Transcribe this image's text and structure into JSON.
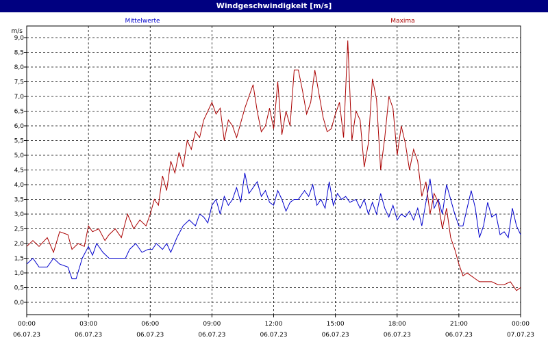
{
  "window_title": "Windgeschwindigkeit [m/s]",
  "chart_data": {
    "type": "line",
    "title": "Windgeschwindigkeit [m/s]",
    "ylabel": "m/s",
    "ylim": [
      0,
      9
    ],
    "xlim": [
      0,
      24
    ],
    "grid": true,
    "y_ticks": [
      "0,0",
      "0,5",
      "1,0",
      "1,5",
      "2,0",
      "2,5",
      "3,0",
      "3,5",
      "4,0",
      "4,5",
      "5,0",
      "5,5",
      "6,0",
      "6,5",
      "7,0",
      "7,5",
      "8,0",
      "8,5",
      "9,0"
    ],
    "x_ticks": [
      {
        "time": "00:00",
        "date": "06.07.23"
      },
      {
        "time": "03:00",
        "date": "06.07.23"
      },
      {
        "time": "06:00",
        "date": "06.07.23"
      },
      {
        "time": "09:00",
        "date": "06.07.23"
      },
      {
        "time": "12:00",
        "date": "06.07.23"
      },
      {
        "time": "15:00",
        "date": "06.07.23"
      },
      {
        "time": "18:00",
        "date": "06.07.23"
      },
      {
        "time": "21:00",
        "date": "06.07.23"
      },
      {
        "time": "00:00",
        "date": "07.07.23"
      }
    ],
    "series": [
      {
        "name": "Mittelwerte",
        "color": "#0000cc",
        "points": [
          [
            0,
            1.3
          ],
          [
            0.3,
            1.5
          ],
          [
            0.6,
            1.2
          ],
          [
            1,
            1.2
          ],
          [
            1.3,
            1.5
          ],
          [
            1.6,
            1.3
          ],
          [
            2,
            1.2
          ],
          [
            2.2,
            0.8
          ],
          [
            2.4,
            0.8
          ],
          [
            2.7,
            1.5
          ],
          [
            3,
            1.9
          ],
          [
            3.2,
            1.6
          ],
          [
            3.4,
            2.0
          ],
          [
            3.7,
            1.7
          ],
          [
            4,
            1.5
          ],
          [
            4.5,
            1.5
          ],
          [
            4.8,
            1.5
          ],
          [
            5,
            1.8
          ],
          [
            5.3,
            2.0
          ],
          [
            5.6,
            1.7
          ],
          [
            5.9,
            1.8
          ],
          [
            6.1,
            1.8
          ],
          [
            6.3,
            2.0
          ],
          [
            6.6,
            1.8
          ],
          [
            6.8,
            2.0
          ],
          [
            7.0,
            1.7
          ],
          [
            7.3,
            2.2
          ],
          [
            7.6,
            2.6
          ],
          [
            7.9,
            2.8
          ],
          [
            8.2,
            2.6
          ],
          [
            8.4,
            3.0
          ],
          [
            8.6,
            2.9
          ],
          [
            8.8,
            2.7
          ],
          [
            9.0,
            3.3
          ],
          [
            9.2,
            3.5
          ],
          [
            9.4,
            3.0
          ],
          [
            9.6,
            3.6
          ],
          [
            9.8,
            3.3
          ],
          [
            10.0,
            3.5
          ],
          [
            10.2,
            3.9
          ],
          [
            10.4,
            3.4
          ],
          [
            10.6,
            4.4
          ],
          [
            10.8,
            3.7
          ],
          [
            11.0,
            3.9
          ],
          [
            11.2,
            4.1
          ],
          [
            11.4,
            3.6
          ],
          [
            11.6,
            3.8
          ],
          [
            11.8,
            3.4
          ],
          [
            12.0,
            3.3
          ],
          [
            12.2,
            3.8
          ],
          [
            12.4,
            3.5
          ],
          [
            12.6,
            3.1
          ],
          [
            12.8,
            3.4
          ],
          [
            13.0,
            3.5
          ],
          [
            13.2,
            3.5
          ],
          [
            13.5,
            3.8
          ],
          [
            13.7,
            3.6
          ],
          [
            13.9,
            4.0
          ],
          [
            14.1,
            3.3
          ],
          [
            14.3,
            3.5
          ],
          [
            14.5,
            3.2
          ],
          [
            14.7,
            4.1
          ],
          [
            14.9,
            3.3
          ],
          [
            15.1,
            3.7
          ],
          [
            15.3,
            3.5
          ],
          [
            15.5,
            3.6
          ],
          [
            15.7,
            3.4
          ],
          [
            16.0,
            3.5
          ],
          [
            16.2,
            3.2
          ],
          [
            16.4,
            3.5
          ],
          [
            16.6,
            3.0
          ],
          [
            16.8,
            3.4
          ],
          [
            17.0,
            3.0
          ],
          [
            17.2,
            3.7
          ],
          [
            17.4,
            3.2
          ],
          [
            17.6,
            2.9
          ],
          [
            17.8,
            3.3
          ],
          [
            18.0,
            2.8
          ],
          [
            18.2,
            3.0
          ],
          [
            18.4,
            2.9
          ],
          [
            18.6,
            3.1
          ],
          [
            18.8,
            2.8
          ],
          [
            19.0,
            3.2
          ],
          [
            19.2,
            2.6
          ],
          [
            19.4,
            3.4
          ],
          [
            19.6,
            4.2
          ],
          [
            19.8,
            3.2
          ],
          [
            20.0,
            3.5
          ],
          [
            20.2,
            3.0
          ],
          [
            20.4,
            4.0
          ],
          [
            20.6,
            3.5
          ],
          [
            20.8,
            3.0
          ],
          [
            21.0,
            2.6
          ],
          [
            21.2,
            2.6
          ],
          [
            21.4,
            3.2
          ],
          [
            21.6,
            3.8
          ],
          [
            21.8,
            3.2
          ],
          [
            22.0,
            2.2
          ],
          [
            22.2,
            2.6
          ],
          [
            22.4,
            3.4
          ],
          [
            22.6,
            2.9
          ],
          [
            22.8,
            3.0
          ],
          [
            23.0,
            2.3
          ],
          [
            23.2,
            2.4
          ],
          [
            23.4,
            2.2
          ],
          [
            23.6,
            3.2
          ],
          [
            23.8,
            2.6
          ],
          [
            24.0,
            2.3
          ]
        ]
      },
      {
        "name": "Maxima",
        "color": "#aa0000",
        "points": [
          [
            0,
            1.9
          ],
          [
            0.3,
            2.1
          ],
          [
            0.6,
            1.9
          ],
          [
            1,
            2.2
          ],
          [
            1.3,
            1.7
          ],
          [
            1.6,
            2.4
          ],
          [
            2,
            2.3
          ],
          [
            2.2,
            1.8
          ],
          [
            2.5,
            2.0
          ],
          [
            2.8,
            1.9
          ],
          [
            3,
            2.6
          ],
          [
            3.2,
            2.4
          ],
          [
            3.5,
            2.5
          ],
          [
            3.8,
            2.1
          ],
          [
            4,
            2.3
          ],
          [
            4.3,
            2.5
          ],
          [
            4.6,
            2.2
          ],
          [
            4.9,
            3.0
          ],
          [
            5.2,
            2.5
          ],
          [
            5.5,
            2.8
          ],
          [
            5.8,
            2.6
          ],
          [
            6.0,
            3.0
          ],
          [
            6.2,
            3.5
          ],
          [
            6.4,
            3.3
          ],
          [
            6.6,
            4.3
          ],
          [
            6.8,
            3.8
          ],
          [
            7.0,
            4.8
          ],
          [
            7.2,
            4.4
          ],
          [
            7.4,
            5.1
          ],
          [
            7.6,
            4.6
          ],
          [
            7.8,
            5.5
          ],
          [
            8.0,
            5.2
          ],
          [
            8.2,
            5.8
          ],
          [
            8.4,
            5.6
          ],
          [
            8.6,
            6.2
          ],
          [
            8.8,
            6.5
          ],
          [
            9.0,
            6.8
          ],
          [
            9.2,
            6.4
          ],
          [
            9.4,
            6.6
          ],
          [
            9.6,
            5.5
          ],
          [
            9.8,
            6.2
          ],
          [
            10.0,
            6.0
          ],
          [
            10.2,
            5.6
          ],
          [
            10.4,
            6.1
          ],
          [
            10.6,
            6.6
          ],
          [
            10.8,
            7.0
          ],
          [
            11.0,
            7.4
          ],
          [
            11.2,
            6.5
          ],
          [
            11.4,
            5.8
          ],
          [
            11.6,
            6.0
          ],
          [
            11.8,
            6.6
          ],
          [
            12.0,
            5.9
          ],
          [
            12.2,
            7.5
          ],
          [
            12.4,
            5.7
          ],
          [
            12.6,
            6.5
          ],
          [
            12.8,
            6.0
          ],
          [
            13.0,
            7.9
          ],
          [
            13.2,
            7.9
          ],
          [
            13.4,
            7.2
          ],
          [
            13.6,
            6.4
          ],
          [
            13.8,
            6.8
          ],
          [
            14.0,
            7.9
          ],
          [
            14.2,
            7.1
          ],
          [
            14.4,
            6.3
          ],
          [
            14.6,
            5.8
          ],
          [
            14.8,
            5.9
          ],
          [
            15.0,
            6.4
          ],
          [
            15.2,
            6.8
          ],
          [
            15.4,
            5.6
          ],
          [
            15.6,
            8.9
          ],
          [
            15.8,
            5.5
          ],
          [
            16.0,
            6.5
          ],
          [
            16.2,
            6.2
          ],
          [
            16.4,
            4.6
          ],
          [
            16.6,
            5.4
          ],
          [
            16.8,
            7.6
          ],
          [
            17.0,
            6.9
          ],
          [
            17.2,
            4.5
          ],
          [
            17.4,
            5.6
          ],
          [
            17.6,
            7.0
          ],
          [
            17.8,
            6.6
          ],
          [
            18.0,
            5.0
          ],
          [
            18.2,
            6.0
          ],
          [
            18.4,
            5.4
          ],
          [
            18.6,
            4.5
          ],
          [
            18.8,
            5.2
          ],
          [
            19.0,
            4.8
          ],
          [
            19.2,
            3.6
          ],
          [
            19.4,
            4.1
          ],
          [
            19.6,
            3.0
          ],
          [
            19.8,
            3.7
          ],
          [
            20.0,
            3.4
          ],
          [
            20.2,
            2.5
          ],
          [
            20.4,
            3.2
          ],
          [
            20.6,
            2.2
          ],
          [
            20.8,
            1.8
          ],
          [
            21.0,
            1.3
          ],
          [
            21.2,
            0.9
          ],
          [
            21.4,
            1.0
          ],
          [
            21.6,
            0.9
          ],
          [
            21.8,
            0.8
          ],
          [
            22.0,
            0.7
          ],
          [
            22.3,
            0.7
          ],
          [
            22.6,
            0.7
          ],
          [
            22.9,
            0.6
          ],
          [
            23.2,
            0.6
          ],
          [
            23.5,
            0.7
          ],
          [
            23.8,
            0.4
          ],
          [
            24.0,
            0.5
          ]
        ]
      }
    ]
  }
}
